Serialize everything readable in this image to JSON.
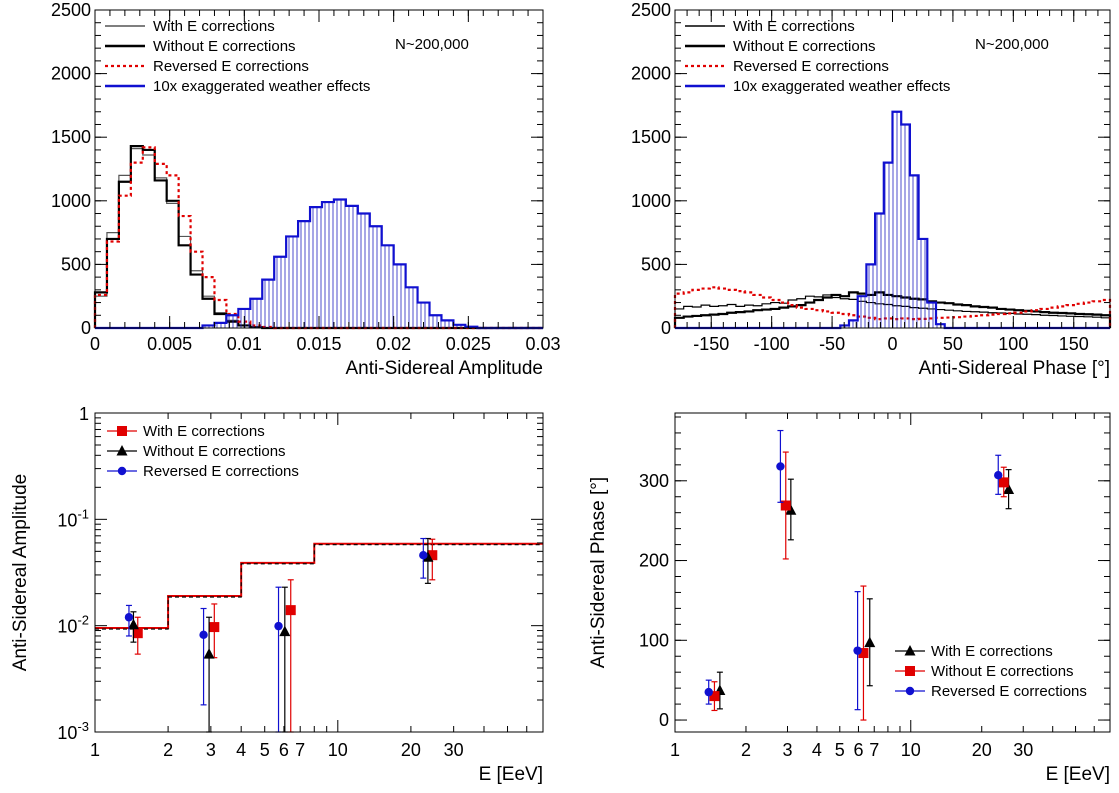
{
  "chart_data": [
    {
      "type": "histogram",
      "xlabel": "Anti-Sidereal Amplitude",
      "ylabel": "",
      "xlim": [
        0,
        0.03
      ],
      "ylim": [
        0,
        2500
      ],
      "xticks": [
        "0",
        "0.005",
        "0.01",
        "0.015",
        "0.02",
        "0.025",
        "0.03"
      ],
      "yticks": [
        "0",
        "500",
        "1000",
        "1500",
        "2000",
        "2500"
      ],
      "annotation": "N~200,000",
      "legend_position": "top-left",
      "bin_width": 0.0008,
      "series": [
        {
          "name": "With E corrections",
          "color": "#555555",
          "style": "solid-thin",
          "values": [
            250,
            750,
            1200,
            1410,
            1360,
            1180,
            980,
            720,
            450,
            250,
            120,
            60,
            20,
            8,
            0,
            0,
            0,
            0,
            0,
            0,
            0,
            0,
            0,
            0,
            0,
            0,
            0,
            0,
            0,
            0,
            0,
            0,
            0,
            0,
            0,
            0,
            0
          ]
        },
        {
          "name": "Without E corrections",
          "color": "#000000",
          "style": "solid-thick",
          "values": [
            280,
            700,
            1150,
            1430,
            1400,
            1160,
            1000,
            650,
            420,
            230,
            110,
            50,
            20,
            6,
            0,
            0,
            0,
            0,
            0,
            0,
            0,
            0,
            0,
            0,
            0,
            0,
            0,
            0,
            0,
            0,
            0,
            0,
            0,
            0,
            0,
            0,
            0
          ]
        },
        {
          "name": "Reversed E corrections",
          "color": "#e00000",
          "style": "dotted",
          "values": [
            260,
            680,
            1040,
            1300,
            1420,
            1290,
            1200,
            880,
            600,
            400,
            220,
            110,
            50,
            20,
            8,
            0,
            0,
            0,
            0,
            0,
            0,
            0,
            0,
            0,
            0,
            0,
            0,
            0,
            0,
            0,
            0,
            0,
            0,
            0,
            0,
            0,
            0
          ]
        },
        {
          "name": "10x exaggerated weather effects",
          "color": "#1010d0",
          "style": "solid-filled",
          "values": [
            0,
            0,
            0,
            0,
            0,
            0,
            0,
            0,
            0,
            20,
            40,
            100,
            150,
            230,
            380,
            560,
            720,
            840,
            950,
            990,
            1010,
            960,
            900,
            800,
            650,
            500,
            320,
            200,
            100,
            60,
            25,
            10,
            0,
            0,
            0,
            0,
            0
          ]
        }
      ]
    },
    {
      "type": "histogram",
      "xlabel": "Anti-Sidereal Phase [°]",
      "ylabel": "",
      "xlim": [
        -180,
        180
      ],
      "ylim": [
        0,
        2500
      ],
      "xticks": [
        "-150",
        "-100",
        "-50",
        "0",
        "50",
        "100",
        "150"
      ],
      "yticks": [
        "0",
        "500",
        "1000",
        "1500",
        "2000",
        "2500"
      ],
      "annotation": "N~200,000",
      "legend_position": "top-left",
      "bin_width": 7.2,
      "series": [
        {
          "name": "With E corrections",
          "color": "#000000",
          "style": "solid-thin",
          "values": [
            150,
            170,
            165,
            180,
            170,
            175,
            185,
            170,
            180,
            175,
            190,
            200,
            195,
            220,
            230,
            250,
            245,
            260,
            240,
            230,
            225,
            210,
            200,
            190,
            185,
            175,
            170,
            160,
            155,
            150,
            145,
            140,
            135,
            130,
            128,
            125,
            120,
            118,
            115,
            110,
            108,
            105,
            100,
            98,
            95,
            92,
            90,
            88,
            85,
            80
          ]
        },
        {
          "name": "Without E corrections",
          "color": "#000000",
          "style": "solid-thick",
          "values": [
            80,
            90,
            95,
            100,
            105,
            110,
            120,
            125,
            130,
            140,
            145,
            150,
            160,
            170,
            180,
            200,
            220,
            240,
            260,
            250,
            280,
            270,
            260,
            280,
            260,
            250,
            240,
            230,
            225,
            210,
            200,
            195,
            185,
            180,
            170,
            165,
            160,
            150,
            145,
            140,
            135,
            130,
            125,
            120,
            118,
            115,
            110,
            108,
            105,
            100
          ]
        },
        {
          "name": "Reversed E corrections",
          "color": "#e00000",
          "style": "dotted",
          "values": [
            270,
            280,
            300,
            310,
            320,
            310,
            300,
            290,
            280,
            260,
            240,
            220,
            200,
            180,
            160,
            150,
            140,
            130,
            120,
            110,
            100,
            90,
            80,
            70,
            75,
            70,
            75,
            70,
            72,
            75,
            80,
            82,
            85,
            90,
            95,
            100,
            105,
            110,
            115,
            120,
            130,
            140,
            150,
            160,
            170,
            180,
            190,
            200,
            210,
            220
          ]
        },
        {
          "name": "10x exaggerated weather effects",
          "color": "#1010d0",
          "style": "solid-filled",
          "values": [
            0,
            0,
            0,
            0,
            0,
            0,
            0,
            0,
            0,
            0,
            0,
            0,
            0,
            0,
            0,
            0,
            0,
            0,
            0,
            20,
            60,
            250,
            500,
            900,
            1300,
            1700,
            1600,
            1200,
            700,
            200,
            30,
            0,
            0,
            0,
            0,
            0,
            0,
            0,
            0,
            0,
            0,
            0,
            0,
            0,
            0,
            0,
            0,
            0,
            0,
            0
          ]
        }
      ]
    },
    {
      "type": "scatter",
      "xlabel": "E [EeV]",
      "ylabel": "Anti-Sidereal Amplitude",
      "xscale": "log",
      "yscale": "log",
      "xlim": [
        1,
        70
      ],
      "ylim": [
        0.001,
        1
      ],
      "xticks": [
        "1",
        "2",
        "3",
        "4",
        "5",
        "6",
        "7",
        "10",
        "20",
        "30"
      ],
      "ytick_labels": [
        {
          "base": "10",
          "exp": "-3"
        },
        {
          "base": "10",
          "exp": "-2"
        },
        {
          "base": "10",
          "exp": "-1"
        },
        {
          "base": "1",
          "exp": ""
        }
      ],
      "legend_position": "top-left",
      "upper_limit_step": {
        "edges": [
          1,
          2,
          4,
          8,
          70
        ],
        "values": [
          0.0095,
          0.019,
          0.039,
          0.059
        ]
      },
      "series": [
        {
          "name": "With E corrections",
          "color": "#e00000",
          "marker": "square",
          "points": [
            {
              "x": 1.5,
              "y": 0.0085,
              "lo": 0.0054,
              "hi": 0.012
            },
            {
              "x": 3.1,
              "y": 0.0097,
              "lo": 0.005,
              "hi": 0.016
            },
            {
              "x": 6.4,
              "y": 0.014,
              "lo": 0.001,
              "hi": 0.027
            },
            {
              "x": 24.5,
              "y": 0.046,
              "lo": 0.027,
              "hi": 0.065
            }
          ]
        },
        {
          "name": "Without E corrections",
          "color": "#000000",
          "marker": "triangle",
          "points": [
            {
              "x": 1.44,
              "y": 0.0102,
              "lo": 0.007,
              "hi": 0.0135
            },
            {
              "x": 2.95,
              "y": 0.0054,
              "lo": 0.001,
              "hi": 0.012
            },
            {
              "x": 6.05,
              "y": 0.0088,
              "lo": 0.001,
              "hi": 0.023
            },
            {
              "x": 23.5,
              "y": 0.044,
              "lo": 0.025,
              "hi": 0.066
            }
          ]
        },
        {
          "name": "Reversed E corrections",
          "color": "#1010d0",
          "marker": "circle",
          "points": [
            {
              "x": 1.38,
              "y": 0.012,
              "lo": 0.008,
              "hi": 0.0155
            },
            {
              "x": 2.8,
              "y": 0.0082,
              "lo": 0.0018,
              "hi": 0.0145
            },
            {
              "x": 5.7,
              "y": 0.0099,
              "lo": 0.001,
              "hi": 0.023
            },
            {
              "x": 22.5,
              "y": 0.046,
              "lo": 0.028,
              "hi": 0.066
            }
          ]
        }
      ]
    },
    {
      "type": "scatter",
      "xlabel": "E [EeV]",
      "ylabel": "Anti-Sidereal Phase [°]",
      "xscale": "log",
      "xlim": [
        1,
        70
      ],
      "ylim": [
        -15,
        385
      ],
      "xticks": [
        "1",
        "2",
        "3",
        "4",
        "5",
        "6",
        "7",
        "10",
        "20",
        "30"
      ],
      "yticks": [
        "0",
        "100",
        "200",
        "300"
      ],
      "legend_position": "bottom-right",
      "series": [
        {
          "name": "With E corrections",
          "color": "#000000",
          "marker": "triangle",
          "points": [
            {
              "x": 1.55,
              "y": 37,
              "lo": 14,
              "hi": 60
            },
            {
              "x": 3.1,
              "y": 263,
              "lo": 226,
              "hi": 302
            },
            {
              "x": 6.7,
              "y": 97,
              "lo": 43,
              "hi": 152
            },
            {
              "x": 26,
              "y": 289,
              "lo": 265,
              "hi": 314
            }
          ]
        },
        {
          "name": "Without E corrections",
          "color": "#e00000",
          "marker": "square",
          "points": [
            {
              "x": 1.47,
              "y": 30,
              "lo": 12,
              "hi": 48
            },
            {
              "x": 2.95,
              "y": 269,
              "lo": 202,
              "hi": 336
            },
            {
              "x": 6.3,
              "y": 84,
              "lo": 0,
              "hi": 168
            },
            {
              "x": 24.8,
              "y": 298,
              "lo": 280,
              "hi": 317
            }
          ]
        },
        {
          "name": "Reversed E corrections",
          "color": "#1010d0",
          "marker": "circle",
          "points": [
            {
              "x": 1.39,
              "y": 35,
              "lo": 20,
              "hi": 50
            },
            {
              "x": 2.8,
              "y": 318,
              "lo": 273,
              "hi": 363
            },
            {
              "x": 5.95,
              "y": 87,
              "lo": 13,
              "hi": 161
            },
            {
              "x": 23.5,
              "y": 307,
              "lo": 283,
              "hi": 332
            }
          ]
        }
      ]
    }
  ]
}
